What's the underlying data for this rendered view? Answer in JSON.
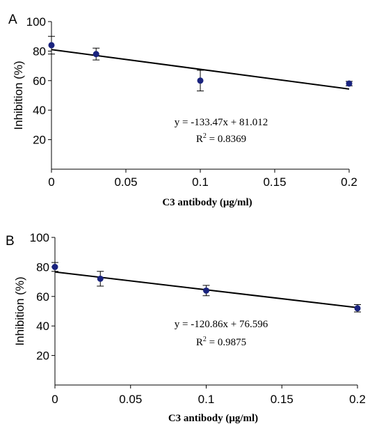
{
  "chart_data": [
    {
      "type": "scatter",
      "panel_label": "A",
      "xlabel": "C3 antibody (μg/ml)",
      "ylabel": "Inhibition (%)",
      "xlim": [
        0,
        0.2
      ],
      "ylim": [
        0,
        100
      ],
      "x_ticks": [
        "0",
        "0.05",
        "0.1",
        "0.15",
        "0.2"
      ],
      "y_ticks": [
        "20",
        "40",
        "60",
        "80",
        "100"
      ],
      "grid": false,
      "marker_color": "#1a237e",
      "points": [
        {
          "x": 0,
          "y": 84,
          "err": 6
        },
        {
          "x": 0.03,
          "y": 78,
          "err": 4
        },
        {
          "x": 0.1,
          "y": 60,
          "err": 7
        },
        {
          "x": 0.2,
          "y": 58,
          "err": 1.5
        }
      ],
      "trendline": {
        "slope": -133.47,
        "intercept": 81.012
      },
      "equation": "y = -133.47x + 81.012",
      "r2_prefix": "R",
      "r2_exponent": "2",
      "r2_value": " = 0.8369"
    },
    {
      "type": "scatter",
      "panel_label": "B",
      "xlabel": "C3 antibody (μg/ml)",
      "ylabel": "Inhibition (%)",
      "xlim": [
        0,
        0.2
      ],
      "ylim": [
        0,
        100
      ],
      "x_ticks": [
        "0",
        "0.05",
        "0.1",
        "0.15",
        "0.2"
      ],
      "y_ticks": [
        "20",
        "40",
        "60",
        "80",
        "100"
      ],
      "grid": false,
      "marker_color": "#1a237e",
      "points": [
        {
          "x": 0,
          "y": 80,
          "err": 3
        },
        {
          "x": 0.03,
          "y": 72,
          "err": 5
        },
        {
          "x": 0.1,
          "y": 64,
          "err": 3.5
        },
        {
          "x": 0.2,
          "y": 52,
          "err": 2.5
        }
      ],
      "trendline": {
        "slope": -120.86,
        "intercept": 76.596
      },
      "equation": "y = -120.86x + 76.596",
      "r2_prefix": "R",
      "r2_exponent": "2",
      "r2_value": " = 0.9875"
    }
  ]
}
